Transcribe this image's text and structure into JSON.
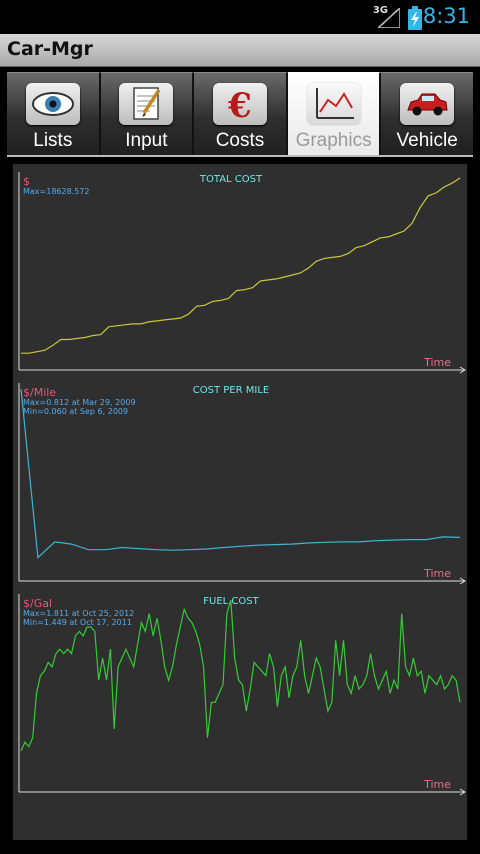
{
  "status_bar": {
    "network": "3G",
    "time": "8:31"
  },
  "app": {
    "title": "Car-Mgr"
  },
  "tabs": [
    {
      "label": "Lists",
      "icon": "eye-icon",
      "selected": false
    },
    {
      "label": "Input",
      "icon": "notepad-pen-icon",
      "selected": false
    },
    {
      "label": "Costs",
      "icon": "euro-icon",
      "selected": false
    },
    {
      "label": "Graphics",
      "icon": "line-chart-icon",
      "selected": true
    },
    {
      "label": "Vehicle",
      "icon": "car-icon",
      "selected": false
    }
  ],
  "colors": {
    "panel_bg": "#2f2f2f",
    "title_text": "#6ee7e7",
    "unit_text": "#e05a7a",
    "stat_text": "#55aaee",
    "axis_label": "#e07090",
    "total_line": "#c8c83c",
    "per_mile_line": "#3fb5d0",
    "fuel_line": "#33cc33"
  },
  "chart_data": [
    {
      "type": "line",
      "title": "TOTAL COST",
      "ylabel": "$",
      "xlabel": "Time",
      "annotations": [
        "Max=18628.572"
      ],
      "ylim": [
        0,
        18628.572
      ],
      "values": [
        700,
        700,
        850,
        1000,
        1500,
        2100,
        2100,
        2200,
        2300,
        2500,
        2600,
        3400,
        3500,
        3600,
        3700,
        3700,
        3900,
        4000,
        4100,
        4200,
        4300,
        4700,
        5500,
        5600,
        6000,
        6100,
        6300,
        7100,
        7200,
        7400,
        8100,
        8200,
        8300,
        8500,
        8700,
        8900,
        9400,
        10100,
        10400,
        10500,
        10600,
        10900,
        11500,
        11700,
        12100,
        12500,
        12600,
        12900,
        13200,
        14000,
        15600,
        16800,
        17100,
        17700,
        18100,
        18628.572
      ]
    },
    {
      "type": "line",
      "title": "COST PER MILE",
      "ylabel": "$/Mile",
      "xlabel": "Time",
      "annotations": [
        "Max=0.812 at Mar 29, 2009",
        "Min=0.060 at Sep 6, 2009"
      ],
      "ylim": [
        0,
        0.812
      ],
      "values": [
        0.812,
        0.06,
        0.13,
        0.12,
        0.095,
        0.095,
        0.105,
        0.1,
        0.095,
        0.093,
        0.095,
        0.098,
        0.105,
        0.11,
        0.115,
        0.118,
        0.12,
        0.125,
        0.128,
        0.13,
        0.13,
        0.135,
        0.138,
        0.14,
        0.14,
        0.152,
        0.15
      ]
    },
    {
      "type": "line",
      "title": "FUEL COST",
      "ylabel": "$/Gal",
      "xlabel": "Time",
      "annotations": [
        "Max=1.811 at Oct 25, 2012",
        "Min=1.449 at Oct 17, 2011"
      ],
      "ylim": [
        1.4,
        1.811
      ],
      "values": [
        1.47,
        1.49,
        1.48,
        1.5,
        1.6,
        1.64,
        1.65,
        1.67,
        1.66,
        1.69,
        1.7,
        1.69,
        1.7,
        1.69,
        1.73,
        1.74,
        1.73,
        1.75,
        1.75,
        1.74,
        1.63,
        1.68,
        1.63,
        1.7,
        1.52,
        1.66,
        1.68,
        1.7,
        1.68,
        1.66,
        1.71,
        1.76,
        1.74,
        1.78,
        1.73,
        1.77,
        1.72,
        1.66,
        1.63,
        1.66,
        1.71,
        1.75,
        1.79,
        1.77,
        1.76,
        1.74,
        1.71,
        1.66,
        1.5,
        1.58,
        1.58,
        1.6,
        1.62,
        1.78,
        1.811,
        1.68,
        1.63,
        1.62,
        1.56,
        1.61,
        1.67,
        1.66,
        1.65,
        1.64,
        1.69,
        1.66,
        1.57,
        1.64,
        1.66,
        1.59,
        1.64,
        1.66,
        1.72,
        1.64,
        1.6,
        1.64,
        1.68,
        1.66,
        1.61,
        1.56,
        1.58,
        1.72,
        1.64,
        1.72,
        1.62,
        1.6,
        1.64,
        1.61,
        1.62,
        1.64,
        1.69,
        1.64,
        1.61,
        1.63,
        1.65,
        1.6,
        1.63,
        1.61,
        1.78,
        1.66,
        1.64,
        1.68,
        1.64,
        1.65,
        1.6,
        1.64,
        1.63,
        1.62,
        1.64,
        1.61,
        1.62,
        1.64,
        1.63,
        1.58
      ]
    }
  ]
}
